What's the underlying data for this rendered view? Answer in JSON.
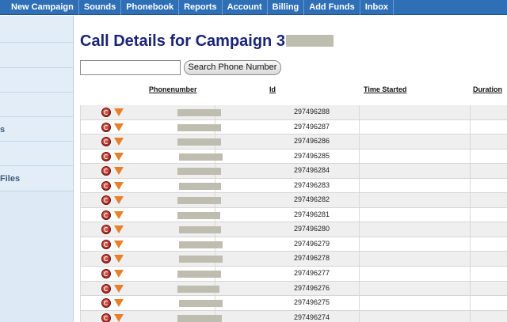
{
  "nav": {
    "items": [
      "New Campaign",
      "Sounds",
      "Phonebook",
      "Reports",
      "Account",
      "Billing",
      "Add Funds",
      "Inbox"
    ]
  },
  "sidebar": {
    "labels": [
      "s",
      "Files"
    ]
  },
  "page": {
    "title": "Call Details for Campaign 3"
  },
  "search": {
    "button_label": "Search Phone Number",
    "value": ""
  },
  "table": {
    "headers": {
      "phonenumber": "Phonenumber",
      "id": "Id",
      "time_started": "Time Started",
      "duration": "Duration"
    },
    "ids": [
      "297496288",
      "297496287",
      "297496286",
      "297496285",
      "297496284",
      "297496283",
      "297496282",
      "297496281",
      "297496280",
      "297496279",
      "297496278",
      "297496277",
      "297496276",
      "297496275",
      "297496274"
    ]
  }
}
